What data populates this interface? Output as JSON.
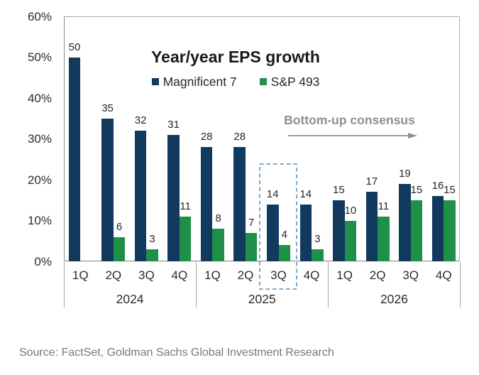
{
  "chart_data": {
    "type": "bar",
    "title": "Year/year EPS growth",
    "legend": [
      {
        "label": "Magnificent 7",
        "color": "#123a5e"
      },
      {
        "label": "S&P 493",
        "color": "#1f9048"
      }
    ],
    "y_axis": {
      "min": 0,
      "max": 60,
      "step": 10,
      "tick_labels": [
        "0%",
        "10%",
        "20%",
        "30%",
        "40%",
        "50%",
        "60%"
      ]
    },
    "groups": [
      {
        "year": "2024",
        "quarters": [
          "1Q",
          "2Q",
          "3Q",
          "4Q"
        ]
      },
      {
        "year": "2025",
        "quarters": [
          "1Q",
          "2Q",
          "3Q",
          "4Q"
        ]
      },
      {
        "year": "2026",
        "quarters": [
          "1Q",
          "2Q",
          "3Q",
          "4Q"
        ]
      }
    ],
    "series": [
      {
        "name": "Magnificent 7",
        "color": "#123a5e",
        "values": [
          50,
          35,
          32,
          31,
          28,
          28,
          14,
          14,
          15,
          17,
          19,
          16
        ]
      },
      {
        "name": "S&P 493",
        "color": "#1f9048",
        "values": [
          null,
          6,
          3,
          11,
          8,
          7,
          4,
          3,
          10,
          11,
          15,
          15
        ]
      }
    ],
    "annotation": {
      "text": "Bottom-up consensus",
      "color": "#8f8f8f"
    },
    "highlight": {
      "category": "3Q 2025",
      "style": "dashed-box",
      "color": "#7fa7c9"
    },
    "source": "Source: FactSet, Goldman Sachs Global Investment Research"
  },
  "colors": {
    "bar_navy": "#123a5e",
    "bar_green": "#1f9048",
    "axis_border": "#a9a9a9",
    "annotation_gray": "#8f8f8f",
    "highlight_blue": "#7fa7c9",
    "source_gray": "#75787b",
    "text_dark": "#262626"
  }
}
